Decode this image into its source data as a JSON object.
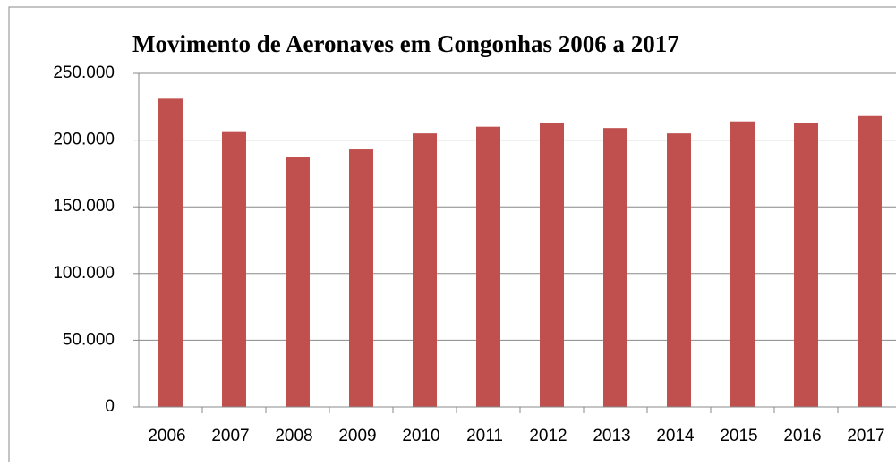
{
  "chart_data": {
    "type": "bar",
    "title": "Movimento de Aeronaves em Congonhas 2006 a 2017",
    "categories": [
      "2006",
      "2007",
      "2008",
      "2009",
      "2010",
      "2011",
      "2012",
      "2013",
      "2014",
      "2015",
      "2016",
      "2017"
    ],
    "values": [
      231000,
      206000,
      187000,
      193000,
      205000,
      210000,
      213000,
      209000,
      205000,
      214000,
      213000,
      218000
    ],
    "color": "#c0504d",
    "ylim": [
      0,
      250000
    ],
    "yticks": [
      0,
      {
        "value": 50000,
        "label": "50.000"
      },
      {
        "value": 100000,
        "label": "100.000"
      },
      {
        "value": 150000,
        "label": "150.000"
      },
      {
        "value": 200000,
        "label": "200.000"
      },
      {
        "value": 250000,
        "label": "250.000"
      }
    ],
    "grid": true
  }
}
